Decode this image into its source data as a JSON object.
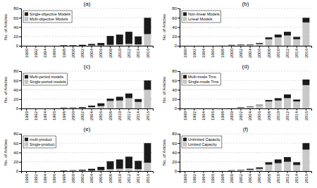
{
  "chart_data": [
    {
      "type": "bar",
      "title": "(a)",
      "y_label": "No. of Articles",
      "categories": [
        "1990",
        "1992",
        "1994",
        "1996",
        "1998",
        "2000",
        "2002",
        "2004",
        "2006",
        "2008",
        "2010",
        "2012",
        "2014",
        "2016"
      ],
      "series": [
        {
          "name": "Multi-objective Models",
          "color": "#c8c8c8",
          "values": [
            0,
            0,
            0,
            0,
            0,
            0,
            0,
            1,
            1,
            2,
            3,
            4,
            3,
            25
          ]
        },
        {
          "name": "Single-objective Models",
          "color": "#1a1a1a",
          "values": [
            0,
            0,
            0,
            0,
            1,
            1,
            2,
            3,
            5,
            19,
            21,
            26,
            17,
            35
          ]
        }
      ],
      "stacked": true,
      "ylim": [
        0,
        80
      ],
      "yticks": [
        0,
        20,
        40,
        60,
        80
      ],
      "grid": true,
      "legend": "upper left"
    },
    {
      "type": "bar",
      "title": "(b)",
      "y_label": "No. of Articles",
      "categories": [
        "1990",
        "1992",
        "1994",
        "1996",
        "1998",
        "2000",
        "2002",
        "2004",
        "2006",
        "2008",
        "2010",
        "2012",
        "2014",
        "2016"
      ],
      "series": [
        {
          "name": "Linear Models",
          "color": "#c8c8c8",
          "values": [
            0,
            0,
            0,
            0,
            1,
            1,
            2,
            2,
            4,
            14,
            18,
            22,
            14,
            50
          ]
        },
        {
          "name": "Non-linear Models",
          "color": "#1a1a1a",
          "values": [
            0,
            0,
            0,
            0,
            0,
            1,
            1,
            1,
            2,
            4,
            6,
            8,
            5,
            10
          ]
        }
      ],
      "stacked": true,
      "ylim": [
        0,
        80
      ],
      "yticks": [
        0,
        20,
        40,
        60,
        80
      ],
      "grid": true,
      "legend": "upper left"
    },
    {
      "type": "bar",
      "title": "(c)",
      "y_label": "No. of Articles",
      "categories": [
        "1990",
        "1992",
        "1994",
        "1996",
        "1998",
        "2000",
        "2002",
        "2004",
        "2006",
        "2008",
        "2010",
        "2012",
        "2014",
        "2016"
      ],
      "series": [
        {
          "name": "Single-period models",
          "color": "#c8c8c8",
          "values": [
            0,
            0,
            0,
            1,
            1,
            1,
            1,
            3,
            5,
            16,
            17,
            22,
            14,
            40
          ]
        },
        {
          "name": "Multi-period models",
          "color": "#1a1a1a",
          "values": [
            0,
            0,
            0,
            0,
            1,
            1,
            2,
            3,
            6,
            5,
            8,
            10,
            6,
            20
          ]
        }
      ],
      "stacked": true,
      "ylim": [
        0,
        80
      ],
      "yticks": [
        0,
        20,
        40,
        60,
        80
      ],
      "grid": true,
      "legend": "upper left"
    },
    {
      "type": "bar",
      "title": "(d)",
      "y_label": "No. of Articles",
      "categories": [
        "1990",
        "1992",
        "1994",
        "1996",
        "1998",
        "2000",
        "2002",
        "2004",
        "2006",
        "2008",
        "2010",
        "2012",
        "2014",
        "2016"
      ],
      "series": [
        {
          "name": "Single-mode Trns.",
          "color": "#c8c8c8",
          "values": [
            0,
            0,
            0,
            0,
            0,
            1,
            2,
            3,
            7,
            15,
            17,
            22,
            15,
            50
          ]
        },
        {
          "name": "Multi-mode Trns.",
          "color": "#1a1a1a",
          "values": [
            0,
            0,
            0,
            0,
            0,
            0,
            1,
            1,
            1,
            3,
            5,
            8,
            4,
            12
          ]
        }
      ],
      "stacked": true,
      "ylim": [
        0,
        80
      ],
      "yticks": [
        0,
        20,
        40,
        60,
        80
      ],
      "grid": true,
      "legend": "upper left"
    },
    {
      "type": "bar",
      "title": "(e)",
      "y_label": "No. of Articles",
      "categories": [
        "1990",
        "1992",
        "1994",
        "1996",
        "1998",
        "2000",
        "2002",
        "2004",
        "2006",
        "2008",
        "2010",
        "2012",
        "2014",
        "2016"
      ],
      "series": [
        {
          "name": "Single-product",
          "color": "#c8c8c8",
          "values": [
            0,
            0,
            0,
            0,
            0,
            1,
            1,
            1,
            2,
            4,
            5,
            6,
            4,
            18
          ]
        },
        {
          "name": "multi-product",
          "color": "#1a1a1a",
          "values": [
            0,
            0,
            0,
            0,
            1,
            1,
            2,
            4,
            7,
            17,
            20,
            25,
            18,
            42
          ]
        }
      ],
      "stacked": true,
      "ylim": [
        0,
        80
      ],
      "yticks": [
        0,
        20,
        40,
        60,
        80
      ],
      "grid": true,
      "legend": "upper left"
    },
    {
      "type": "bar",
      "title": "(f)",
      "y_label": "No. of Articles",
      "categories": [
        "1990",
        "1992",
        "1994",
        "1996",
        "1998",
        "2000",
        "2002",
        "2004",
        "2006",
        "2008",
        "2010",
        "2012",
        "2014",
        "2016"
      ],
      "series": [
        {
          "name": "Limited Capacity",
          "color": "#c8c8c8",
          "values": [
            0,
            0,
            0,
            1,
            1,
            1,
            2,
            3,
            5,
            14,
            17,
            20,
            13,
            46
          ]
        },
        {
          "name": "Unlimited Capacity",
          "color": "#1a1a1a",
          "values": [
            0,
            0,
            0,
            0,
            0,
            1,
            1,
            2,
            3,
            5,
            8,
            10,
            6,
            14
          ]
        }
      ],
      "stacked": true,
      "ylim": [
        0,
        80
      ],
      "yticks": [
        0,
        20,
        40,
        60,
        80
      ],
      "grid": true,
      "legend": "upper left"
    }
  ]
}
